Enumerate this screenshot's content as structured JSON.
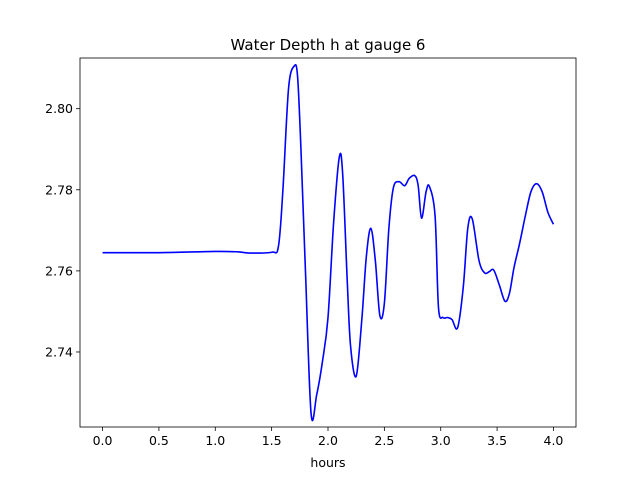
{
  "chart_data": {
    "type": "line",
    "title": "Water Depth h at gauge 6",
    "xlabel": "hours",
    "ylabel": "",
    "xlim": [
      -0.2,
      4.2
    ],
    "ylim": [
      2.7215,
      2.8125
    ],
    "x_ticks": [
      0.0,
      0.5,
      1.0,
      1.5,
      2.0,
      2.5,
      3.0,
      3.5,
      4.0
    ],
    "x_tick_labels": [
      "0.0",
      "0.5",
      "1.0",
      "1.5",
      "2.0",
      "2.5",
      "3.0",
      "3.5",
      "4.0"
    ],
    "y_ticks": [
      2.74,
      2.76,
      2.78,
      2.8
    ],
    "y_tick_labels": [
      "2.74",
      "2.76",
      "2.78",
      "2.80"
    ],
    "grid": false,
    "legend": "none",
    "series": [
      {
        "color": "#0000ff",
        "x": [
          0.0,
          0.5,
          1.0,
          1.2,
          1.3,
          1.5,
          1.56,
          1.6,
          1.65,
          1.7,
          1.73,
          1.76,
          1.8,
          1.85,
          1.9,
          1.95,
          2.0,
          2.05,
          2.1,
          2.13,
          2.17,
          2.2,
          2.25,
          2.3,
          2.34,
          2.38,
          2.42,
          2.46,
          2.5,
          2.54,
          2.58,
          2.63,
          2.68,
          2.72,
          2.77,
          2.8,
          2.83,
          2.87,
          2.9,
          2.95,
          2.98,
          3.02,
          3.06,
          3.1,
          3.15,
          3.2,
          3.24,
          3.28,
          3.34,
          3.39,
          3.43,
          3.47,
          3.52,
          3.57,
          3.61,
          3.65,
          3.7,
          3.75,
          3.8,
          3.85,
          3.9,
          3.95,
          4.0
        ],
        "y": [
          2.7645,
          2.7645,
          2.7648,
          2.7647,
          2.7644,
          2.7646,
          2.766,
          2.78,
          2.805,
          2.8105,
          2.808,
          2.79,
          2.76,
          2.7248,
          2.7295,
          2.7375,
          2.7485,
          2.772,
          2.788,
          2.784,
          2.758,
          2.7415,
          2.734,
          2.748,
          2.7635,
          2.7705,
          2.7625,
          2.749,
          2.752,
          2.7705,
          2.7805,
          2.782,
          2.781,
          2.7828,
          2.7835,
          2.781,
          2.773,
          2.7795,
          2.7808,
          2.7735,
          2.751,
          2.7485,
          2.7485,
          2.748,
          2.746,
          2.756,
          2.7705,
          2.7728,
          2.7625,
          2.7595,
          2.7598,
          2.7602,
          2.7565,
          2.7525,
          2.7545,
          2.7608,
          2.7668,
          2.7735,
          2.7795,
          2.7815,
          2.7795,
          2.7745,
          2.7715
        ]
      }
    ]
  }
}
